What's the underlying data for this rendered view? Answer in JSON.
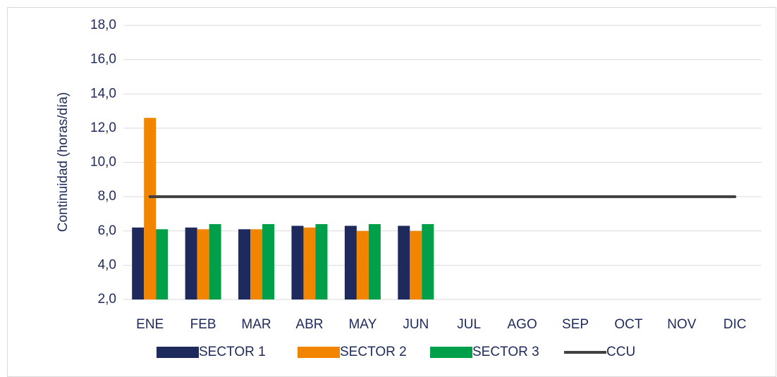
{
  "chart_data": {
    "type": "bar",
    "y_axis_label": "Continuidad (horas/día)",
    "categories": [
      "ENE",
      "FEB",
      "MAR",
      "ABR",
      "MAY",
      "JUN",
      "JUL",
      "AGO",
      "SEP",
      "OCT",
      "NOV",
      "DIC"
    ],
    "series": [
      {
        "name": "SECTOR 1",
        "color": "#1f2a5c",
        "type": "bar",
        "values": [
          6.2,
          6.2,
          6.1,
          6.3,
          6.3,
          6.3,
          null,
          null,
          null,
          null,
          null,
          null
        ]
      },
      {
        "name": "SECTOR 2",
        "color": "#f28500",
        "type": "bar",
        "values": [
          12.6,
          6.1,
          6.1,
          6.2,
          6.0,
          6.0,
          null,
          null,
          null,
          null,
          null,
          null
        ]
      },
      {
        "name": "SECTOR 3",
        "color": "#00a04a",
        "type": "bar",
        "values": [
          6.1,
          6.4,
          6.4,
          6.4,
          6.4,
          6.4,
          null,
          null,
          null,
          null,
          null,
          null
        ]
      },
      {
        "name": "CCU",
        "color": "#404040",
        "type": "line",
        "values": [
          8,
          8,
          8,
          8,
          8,
          8,
          8,
          8,
          8,
          8,
          8,
          8
        ]
      }
    ],
    "ylim": [
      2,
      18
    ],
    "yticks": [
      {
        "value": 2,
        "label": "2,0"
      },
      {
        "value": 4,
        "label": "4,0"
      },
      {
        "value": 6,
        "label": "6,0"
      },
      {
        "value": 8,
        "label": "8,0"
      },
      {
        "value": 10,
        "label": "10,0"
      },
      {
        "value": 12,
        "label": "12,0"
      },
      {
        "value": 14,
        "label": "14,0"
      },
      {
        "value": 16,
        "label": "16,0"
      },
      {
        "value": 18,
        "label": "18,0"
      }
    ],
    "grid": true,
    "legend": "bottom"
  }
}
